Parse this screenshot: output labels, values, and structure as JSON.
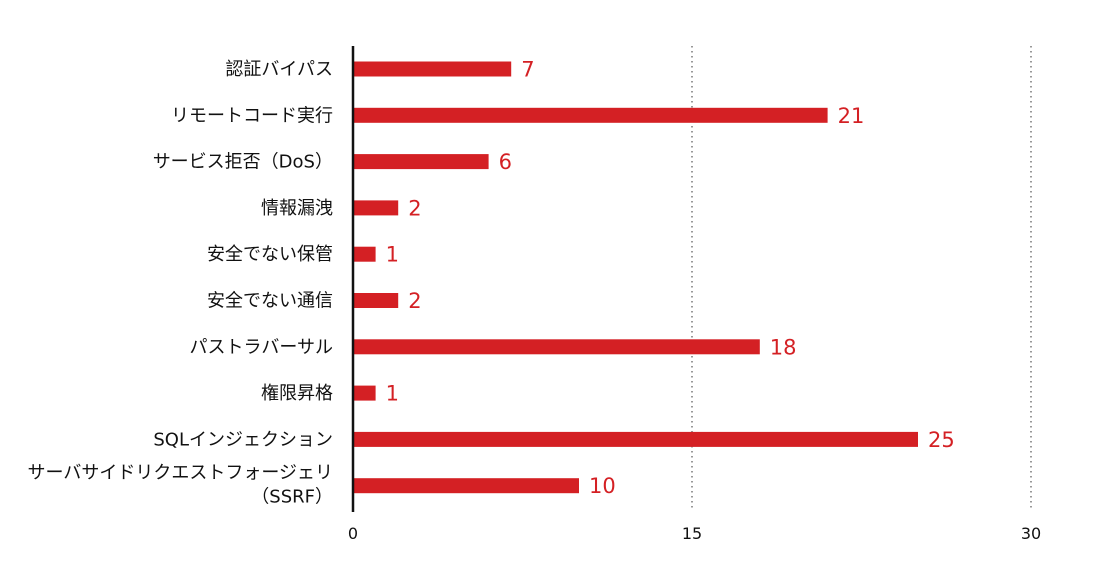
{
  "chart_data": {
    "type": "bar",
    "orientation": "horizontal",
    "categories": [
      [
        "認証バイパス"
      ],
      [
        "リモートコード実行"
      ],
      [
        "サービス拒否（DoS）"
      ],
      [
        "情報漏洩"
      ],
      [
        "安全でない保管"
      ],
      [
        "安全でない通信"
      ],
      [
        "パストラバーサル"
      ],
      [
        "権限昇格"
      ],
      [
        "SQLインジェクション"
      ],
      [
        "サーバサイドリクエストフォージェリ",
        "（SSRF）"
      ]
    ],
    "values": [
      7,
      21,
      6,
      2,
      1,
      2,
      18,
      1,
      25,
      10
    ],
    "xlim": [
      0,
      30
    ],
    "xticks": [
      0,
      15,
      30
    ],
    "grid": "vertical dotted",
    "bar_color": "#d42024",
    "label_color": "#d42024"
  }
}
